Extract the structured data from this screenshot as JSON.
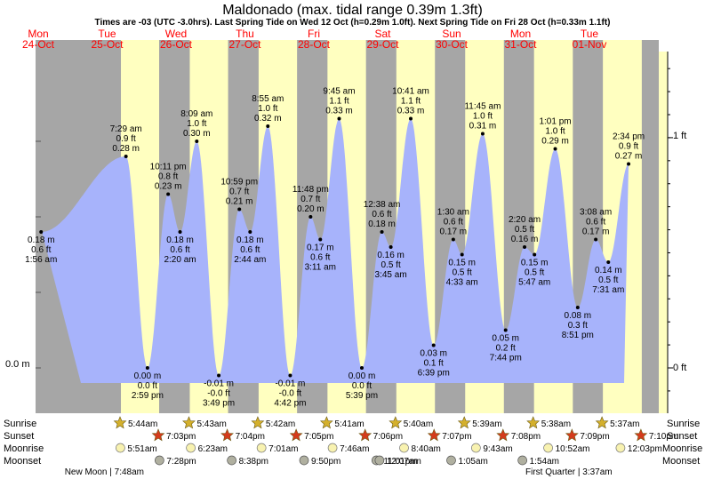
{
  "chart_data": {
    "type": "area",
    "title": "Maldonado (max. tidal range 0.39m 1.3ft)",
    "subtitle": "Times are -03 (UTC -3.0hrs). Last Spring Tide on Wed 12 Oct (h=0.29m 1.0ft). Next Spring Tide on Fri 28 Oct (h=0.33m 1.1ft)",
    "left_axis_label": "0.0 m",
    "right_axis_labels": [
      "1 ft",
      "0 ft"
    ],
    "days": [
      {
        "dow": "Mon",
        "date": "24-Oct",
        "day_idx": 0
      },
      {
        "dow": "Tue",
        "date": "25-Oct",
        "day_idx": 1
      },
      {
        "dow": "Wed",
        "date": "26-Oct",
        "day_idx": 2
      },
      {
        "dow": "Thu",
        "date": "27-Oct",
        "day_idx": 3
      },
      {
        "dow": "Fri",
        "date": "28-Oct",
        "day_idx": 4
      },
      {
        "dow": "Sat",
        "date": "29-Oct",
        "day_idx": 5
      },
      {
        "dow": "Sun",
        "date": "30-Oct",
        "day_idx": 6
      },
      {
        "dow": "Mon",
        "date": "31-Oct",
        "day_idx": 7
      },
      {
        "dow": "Tue",
        "date": "01-Nov",
        "day_idx": 8
      }
    ],
    "tides": [
      {
        "day": 0,
        "time": "1:56 am",
        "m": 0.18,
        "m_label": "0.18 m",
        "ft_label": "0.6 ft",
        "type": "low"
      },
      {
        "day": 1,
        "time": "7:29 am",
        "m": 0.28,
        "m_label": "0.28 m",
        "ft_label": "0.9 ft",
        "type": "high"
      },
      {
        "day": 1,
        "time": "2:59 pm",
        "m": 0.0,
        "m_label": "0.00 m",
        "ft_label": "0.0 ft",
        "type": "low"
      },
      {
        "day": 1,
        "time": "10:11 pm",
        "m": 0.23,
        "m_label": "0.23 m",
        "ft_label": "0.8 ft",
        "type": "high"
      },
      {
        "day": 2,
        "time": "2:20 am",
        "m": 0.18,
        "m_label": "0.18 m",
        "ft_label": "0.6 ft",
        "type": "low"
      },
      {
        "day": 2,
        "time": "8:09 am",
        "m": 0.3,
        "m_label": "0.30 m",
        "ft_label": "1.0 ft",
        "type": "high"
      },
      {
        "day": 2,
        "time": "3:49 pm",
        "m": -0.01,
        "m_label": "-0.01 m",
        "ft_label": "-0.0 ft",
        "type": "low"
      },
      {
        "day": 2,
        "time": "10:59 pm",
        "m": 0.21,
        "m_label": "0.21 m",
        "ft_label": "0.7 ft",
        "type": "high"
      },
      {
        "day": 3,
        "time": "2:44 am",
        "m": 0.18,
        "m_label": "0.18 m",
        "ft_label": "0.6 ft",
        "type": "low"
      },
      {
        "day": 3,
        "time": "8:55 am",
        "m": 0.32,
        "m_label": "0.32 m",
        "ft_label": "1.0 ft",
        "type": "high"
      },
      {
        "day": 3,
        "time": "4:42 pm",
        "m": -0.01,
        "m_label": "-0.01 m",
        "ft_label": "-0.0 ft",
        "type": "low"
      },
      {
        "day": 3,
        "time": "11:48 pm",
        "m": 0.2,
        "m_label": "0.20 m",
        "ft_label": "0.7 ft",
        "type": "high"
      },
      {
        "day": 4,
        "time": "3:11 am",
        "m": 0.17,
        "m_label": "0.17 m",
        "ft_label": "0.6 ft",
        "type": "low"
      },
      {
        "day": 4,
        "time": "9:45 am",
        "m": 0.33,
        "m_label": "0.33 m",
        "ft_label": "1.1 ft",
        "type": "high"
      },
      {
        "day": 4,
        "time": "5:39 pm",
        "m": 0.0,
        "m_label": "0.00 m",
        "ft_label": "0.0 ft",
        "type": "low"
      },
      {
        "day": 5,
        "time": "12:38 am",
        "m": 0.18,
        "m_label": "0.18 m",
        "ft_label": "0.6 ft",
        "type": "high"
      },
      {
        "day": 5,
        "time": "3:45 am",
        "m": 0.16,
        "m_label": "0.16 m",
        "ft_label": "0.5 ft",
        "type": "low"
      },
      {
        "day": 5,
        "time": "10:41 am",
        "m": 0.33,
        "m_label": "0.33 m",
        "ft_label": "1.1 ft",
        "type": "high"
      },
      {
        "day": 5,
        "time": "6:39 pm",
        "m": 0.03,
        "m_label": "0.03 m",
        "ft_label": "0.1 ft",
        "type": "low"
      },
      {
        "day": 6,
        "time": "1:30 am",
        "m": 0.17,
        "m_label": "0.17 m",
        "ft_label": "0.6 ft",
        "type": "high"
      },
      {
        "day": 6,
        "time": "4:33 am",
        "m": 0.15,
        "m_label": "0.15 m",
        "ft_label": "0.5 ft",
        "type": "low"
      },
      {
        "day": 6,
        "time": "11:45 am",
        "m": 0.31,
        "m_label": "0.31 m",
        "ft_label": "1.0 ft",
        "type": "high"
      },
      {
        "day": 6,
        "time": "7:44 pm",
        "m": 0.05,
        "m_label": "0.05 m",
        "ft_label": "0.2 ft",
        "type": "low"
      },
      {
        "day": 7,
        "time": "2:20 am",
        "m": 0.16,
        "m_label": "0.16 m",
        "ft_label": "0.5 ft",
        "type": "high"
      },
      {
        "day": 7,
        "time": "5:47 am",
        "m": 0.15,
        "m_label": "0.15 m",
        "ft_label": "0.5 ft",
        "type": "low"
      },
      {
        "day": 7,
        "time": "1:01 pm",
        "m": 0.29,
        "m_label": "0.29 m",
        "ft_label": "1.0 ft",
        "type": "high"
      },
      {
        "day": 7,
        "time": "8:51 pm",
        "m": 0.08,
        "m_label": "0.08 m",
        "ft_label": "0.3 ft",
        "type": "low"
      },
      {
        "day": 8,
        "time": "3:08 am",
        "m": 0.17,
        "m_label": "0.17 m",
        "ft_label": "0.6 ft",
        "type": "high"
      },
      {
        "day": 8,
        "time": "7:31 am",
        "m": 0.14,
        "m_label": "0.14 m",
        "ft_label": "0.5 ft",
        "type": "low"
      },
      {
        "day": 8,
        "time": "2:34 pm",
        "m": 0.27,
        "m_label": "0.27 m",
        "ft_label": "0.9 ft",
        "type": "high"
      }
    ],
    "sun": [
      {
        "day": 1,
        "sunrise": "5:44am",
        "sunset": "7:03pm"
      },
      {
        "day": 2,
        "sunrise": "5:43am",
        "sunset": "7:04pm"
      },
      {
        "day": 3,
        "sunrise": "5:42am",
        "sunset": "7:05pm"
      },
      {
        "day": 4,
        "sunrise": "5:41am",
        "sunset": "7:06pm"
      },
      {
        "day": 5,
        "sunrise": "5:40am",
        "sunset": "7:07pm"
      },
      {
        "day": 6,
        "sunrise": "5:39am",
        "sunset": "7:08pm"
      },
      {
        "day": 7,
        "sunrise": "5:38am",
        "sunset": "7:09pm"
      },
      {
        "day": 8,
        "sunrise": "5:37am",
        "sunset": "7:10pm"
      }
    ],
    "moonrise": [
      {
        "day": 1,
        "time": "5:51am"
      },
      {
        "day": 2,
        "time": "6:23am"
      },
      {
        "day": 3,
        "time": "7:01am"
      },
      {
        "day": 4,
        "time": "7:46am"
      },
      {
        "day": 5,
        "time": "8:40am"
      },
      {
        "day": 6,
        "time": "9:43am"
      },
      {
        "day": 7,
        "time": "10:52am"
      },
      {
        "day": 8,
        "time": "12:03pm"
      }
    ],
    "moonset": [
      {
        "day": 1,
        "time": "7:28pm"
      },
      {
        "day": 2,
        "time": "8:38pm"
      },
      {
        "day": 3,
        "time": "9:50pm"
      },
      {
        "day": 4,
        "time": "11:01pm"
      },
      {
        "day": 5,
        "time": "12:07am"
      },
      {
        "day": 6,
        "time": "1:05am"
      },
      {
        "day": 7,
        "time": "1:54am"
      }
    ],
    "moon_phases": [
      "New Moon | 7:48am",
      "First Quarter | 3:37am"
    ],
    "row_labels": {
      "sunrise": "Sunrise",
      "sunset": "Sunset",
      "moonrise": "Moonrise",
      "moonset": "Moonset"
    },
    "colors": {
      "night": "#a6a6a6",
      "day": "#ffffc0",
      "water": "#a7b3fb",
      "day_header": "#ff0000",
      "sun_icon": "#d4b02c",
      "sunset_icon": "#d43b1c",
      "moonrise_icon": "#f8f2b0",
      "moonset_icon": "#b0b0a0"
    }
  }
}
